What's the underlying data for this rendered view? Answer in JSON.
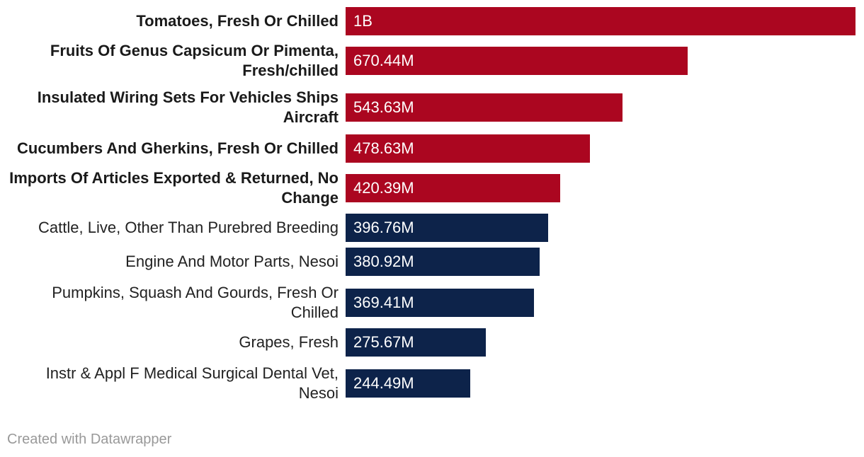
{
  "chart_data": {
    "type": "bar",
    "orientation": "horizontal",
    "categories": [
      "Tomatoes, Fresh Or Chilled",
      "Fruits Of Genus Capsicum Or Pimenta, Fresh/chilled",
      "Insulated Wiring Sets For Vehicles Ships Aircraft",
      "Cucumbers And Gherkins, Fresh Or Chilled",
      "Imports Of Articles Exported & Returned, No Change",
      "Cattle, Live, Other Than Purebred Breeding",
      "Engine And Motor Parts, Nesoi",
      "Pumpkins, Squash And Gourds, Fresh Or Chilled",
      "Grapes, Fresh",
      "Instr & Appl F Medical Surgical Dental Vet, Nesoi"
    ],
    "values": [
      1000000000,
      670440000,
      543630000,
      478630000,
      420390000,
      396760000,
      380920000,
      369410000,
      275670000,
      244490000
    ],
    "value_labels": [
      "1B",
      "670.44M",
      "543.63M",
      "478.63M",
      "420.39M",
      "396.76M",
      "380.92M",
      "369.41M",
      "275.67M",
      "244.49M"
    ],
    "highlighted": [
      true,
      true,
      true,
      true,
      true,
      false,
      false,
      false,
      false,
      false
    ],
    "colors": {
      "highlight": "#ab0620",
      "default": "#0d234a"
    },
    "xlim": [
      0,
      1000000000
    ],
    "title": "",
    "xlabel": "",
    "ylabel": ""
  },
  "credit": "Created with Datawrapper"
}
